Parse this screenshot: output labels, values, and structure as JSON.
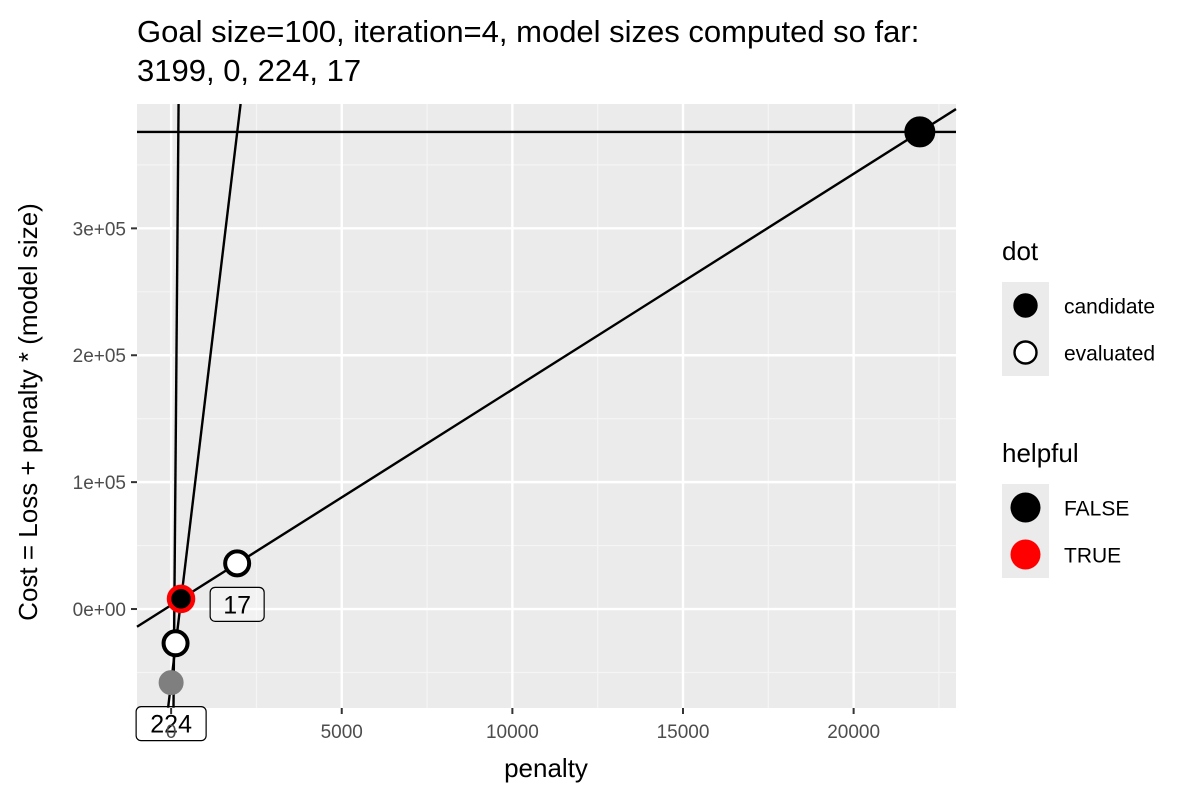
{
  "chart_data": {
    "type": "scatter",
    "title_lines": [
      "Goal size=100, iteration=4, model sizes computed so far:",
      "3199, 0, 224, 17"
    ],
    "xlabel": "penalty",
    "ylabel": "Cost = Loss + penalty * (model size)",
    "xlim": [
      -1000,
      23000
    ],
    "ylim": [
      -78000,
      398000
    ],
    "x_ticks": [
      0,
      5000,
      10000,
      15000,
      20000
    ],
    "x_tick_labels": [
      "0",
      "5000",
      "10000",
      "15000",
      "20000"
    ],
    "y_ticks": [
      0,
      100000,
      200000,
      300000
    ],
    "y_tick_labels": [
      "0e+00",
      "1e+05",
      "2e+05",
      "3e+05"
    ],
    "lines": [
      {
        "name": "size 3199",
        "intercept": -300000,
        "slope": 3199
      },
      {
        "name": "size 224",
        "intercept": -58000,
        "slope": 224
      },
      {
        "name": "size 17",
        "intercept": 3000,
        "slope": 17
      },
      {
        "name": "size 0",
        "intercept": 376000,
        "slope": 0
      }
    ],
    "points": [
      {
        "x": 21940,
        "y": 376000,
        "dot": "candidate",
        "helpful": "FALSE"
      },
      {
        "x": 1935,
        "y": 36000,
        "dot": "evaluated",
        "helpful": ""
      },
      {
        "x": 290,
        "y": 8000,
        "dot": "candidate",
        "helpful": "TRUE"
      },
      {
        "x": 130,
        "y": -27000,
        "dot": "evaluated",
        "helpful": ""
      },
      {
        "x": 0,
        "y": -58000,
        "dot": "evaluated-grey",
        "helpful": ""
      }
    ],
    "labels": [
      {
        "text": "17",
        "x": 1935,
        "y": 36000
      },
      {
        "text": "224",
        "x": 0,
        "y": -58000
      }
    ],
    "legend_dot": {
      "title": "dot",
      "entries": [
        {
          "label": "candidate",
          "fill": "#000000"
        },
        {
          "label": "evaluated",
          "fill": "#ffffff"
        }
      ]
    },
    "legend_helpful": {
      "title": "helpful",
      "entries": [
        {
          "label": "FALSE",
          "color": "#000000"
        },
        {
          "label": "TRUE",
          "color": "#ff0000"
        }
      ]
    },
    "colors": {
      "panel": "#ebebeb",
      "grid_major": "#ffffff",
      "grid_minor": "#f5f5f5",
      "helpful_true": "#ff0000",
      "helpful_false": "#000000",
      "grey_point": "#7f7f7f"
    },
    "grid": true,
    "legend_position": "right"
  }
}
